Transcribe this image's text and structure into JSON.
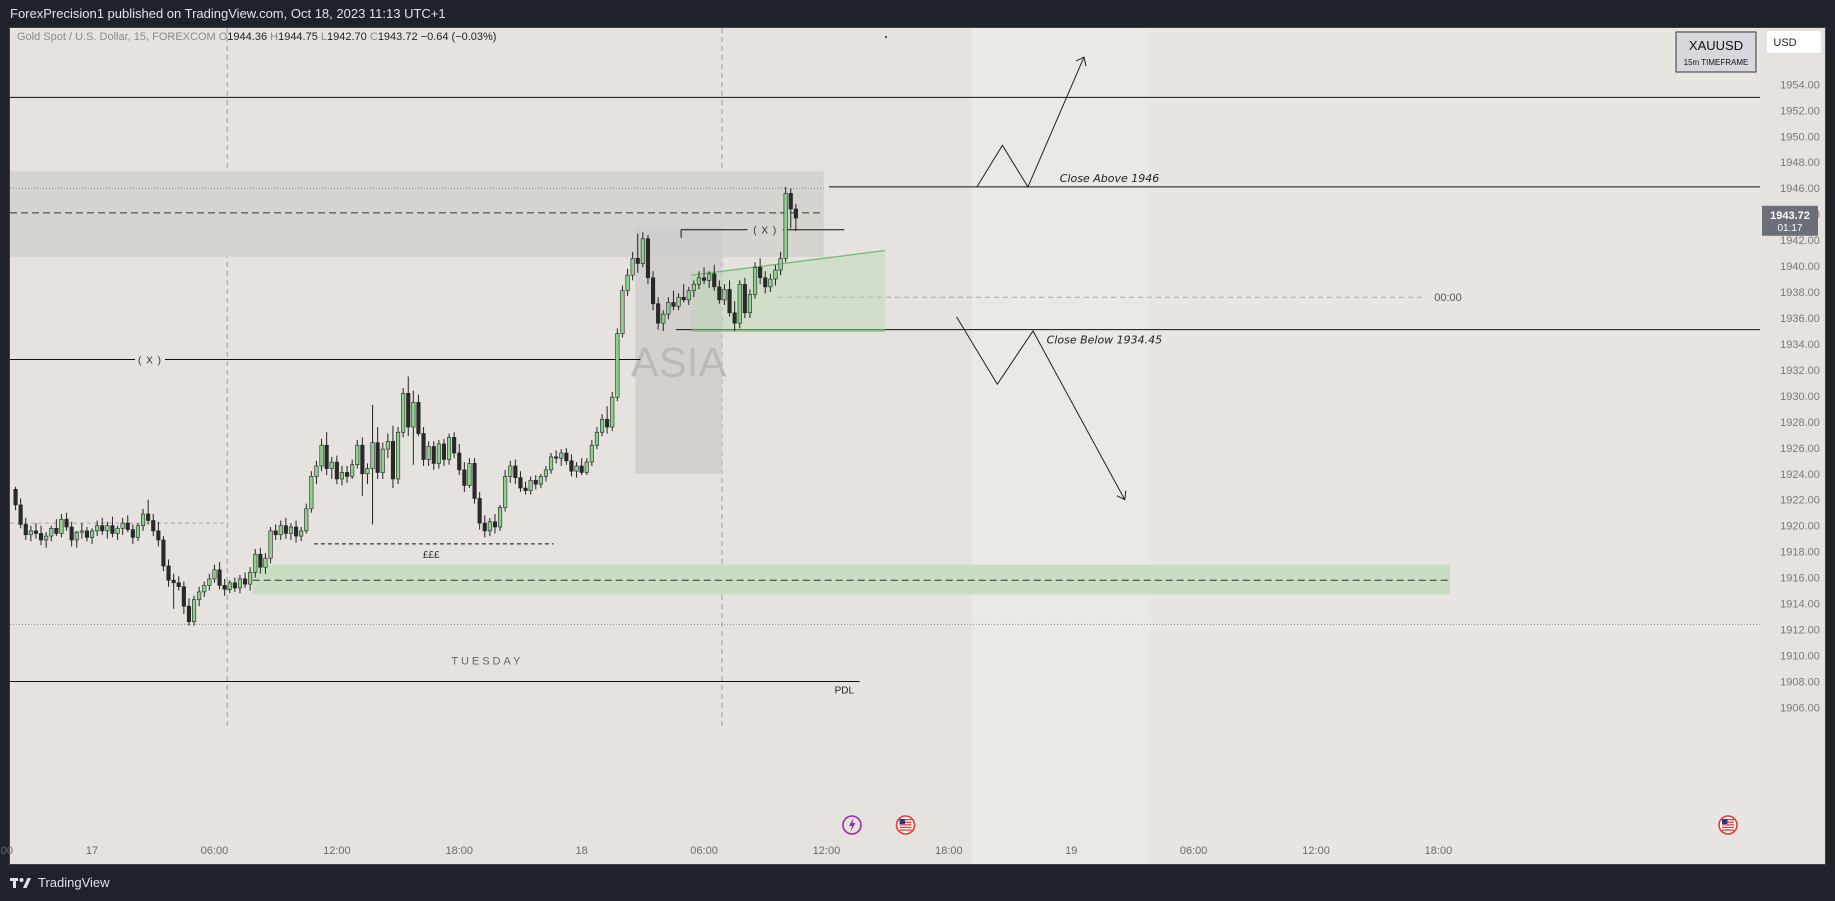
{
  "header": {
    "published_text": "ForexPrecision1 published on TradingView.com, Oct 18, 2023 11:13 UTC+1"
  },
  "footer": {
    "brand": "TradingView"
  },
  "chart_data": {
    "type": "candlestick",
    "symbol_line": {
      "name": "Gold Spot / U.S. Dollar, 15, FOREXCOM",
      "O": "1944.36",
      "H": "1944.75",
      "L": "1942.70",
      "C": "1943.72",
      "change": "−0.64 (−0.03%)"
    },
    "currency": "USD",
    "symbol_box": {
      "title": "XAUUSD",
      "subtitle": "15m TIMEFRAME"
    },
    "price_tag": {
      "price": "1943.72",
      "countdown": "01:17"
    },
    "y_ticks": [
      1906,
      1908,
      1910,
      1912,
      1914,
      1916,
      1918,
      1920,
      1922,
      1924,
      1926,
      1928,
      1930,
      1932,
      1934,
      1936,
      1938,
      1940,
      1942,
      1944,
      1946,
      1948,
      1950,
      1952,
      1954
    ],
    "y_range": [
      1904.8,
      1956.8
    ],
    "x_ticks": [
      {
        "label": ":00",
        "bar": -1.5
      },
      {
        "label": "17",
        "bar": 15.5
      },
      {
        "label": "06:00",
        "bar": 39.5
      },
      {
        "label": "12:00",
        "bar": 63.5
      },
      {
        "label": "18:00",
        "bar": 87.5
      },
      {
        "label": "18",
        "bar": 111.5
      },
      {
        "label": "06:00",
        "bar": 135.5
      },
      {
        "label": "12:00",
        "bar": 159.5
      },
      {
        "label": "18:00",
        "bar": 183.5
      },
      {
        "label": "19",
        "bar": 207.5
      },
      {
        "label": "06:00",
        "bar": 231.5
      },
      {
        "label": "12:00",
        "bar": 255.5
      },
      {
        "label": "18:00",
        "bar": 279.5
      }
    ],
    "colors": {
      "up": "#8fd08f",
      "down": "#2a2a2a",
      "background": "#e6e3de"
    },
    "annotations": {
      "x_label_1": "( X )",
      "x_label_2": "( X )",
      "asia": "ASIA",
      "tuesday": "TUESDAY",
      "eee": "£££",
      "pdl": "PDL",
      "close_above": "Close Above 1946",
      "close_below": "Close Below 1934.45",
      "time_label": "00:00"
    },
    "levels": {
      "top_line": 1953.0,
      "close_above": 1946.1,
      "dotted_top": 1946.0,
      "zone_dashed": 1944.1,
      "zone_top": 1947.3,
      "zone_bottom": 1940.7,
      "close_below": 1935.1,
      "x_level_left": 1932.8,
      "x_level_right": 1942.8,
      "range_mid": 1937.6,
      "eee_line": 1918.6,
      "demand_top": 1917.0,
      "demand_bottom": 1914.7,
      "demand_mid": 1915.8,
      "dotted_low": 1912.4,
      "pdl": 1908.0
    },
    "candles": [
      [
        1922.8,
        1923.0,
        1921.2,
        1921.6
      ],
      [
        1921.6,
        1922.1,
        1919.8,
        1920.1
      ],
      [
        1920.1,
        1920.6,
        1918.9,
        1919.3
      ],
      [
        1919.3,
        1920.0,
        1918.8,
        1919.6
      ],
      [
        1919.6,
        1920.2,
        1919.0,
        1919.4
      ],
      [
        1919.4,
        1920.0,
        1918.5,
        1918.9
      ],
      [
        1918.9,
        1919.5,
        1918.3,
        1919.2
      ],
      [
        1919.2,
        1920.0,
        1918.8,
        1919.8
      ],
      [
        1919.8,
        1920.5,
        1919.2,
        1919.4
      ],
      [
        1919.4,
        1920.9,
        1919.1,
        1920.5
      ],
      [
        1920.5,
        1921.0,
        1919.6,
        1919.9
      ],
      [
        1919.9,
        1920.3,
        1918.4,
        1918.9
      ],
      [
        1918.9,
        1919.6,
        1918.3,
        1919.5
      ],
      [
        1919.5,
        1920.2,
        1919.0,
        1919.6
      ],
      [
        1919.6,
        1919.9,
        1918.8,
        1919.1
      ],
      [
        1919.1,
        1919.8,
        1918.6,
        1919.6
      ],
      [
        1919.6,
        1920.4,
        1919.2,
        1920.0
      ],
      [
        1920.0,
        1920.6,
        1919.3,
        1919.6
      ],
      [
        1919.6,
        1920.3,
        1919.0,
        1920.0
      ],
      [
        1920.0,
        1920.7,
        1919.1,
        1919.4
      ],
      [
        1919.4,
        1920.0,
        1918.9,
        1919.8
      ],
      [
        1919.8,
        1920.6,
        1919.3,
        1920.2
      ],
      [
        1920.2,
        1920.8,
        1919.5,
        1919.7
      ],
      [
        1919.7,
        1920.1,
        1918.6,
        1919.1
      ],
      [
        1919.1,
        1920.2,
        1918.8,
        1920.0
      ],
      [
        1920.0,
        1921.3,
        1919.6,
        1920.9
      ],
      [
        1920.9,
        1922.0,
        1920.1,
        1920.4
      ],
      [
        1920.4,
        1920.9,
        1919.2,
        1919.6
      ],
      [
        1919.6,
        1920.3,
        1918.4,
        1918.9
      ],
      [
        1918.9,
        1919.2,
        1916.5,
        1916.9
      ],
      [
        1916.9,
        1917.4,
        1915.3,
        1915.8
      ],
      [
        1915.8,
        1916.3,
        1913.6,
        1915.6
      ],
      [
        1915.6,
        1916.1,
        1915.0,
        1915.3
      ],
      [
        1915.3,
        1915.7,
        1913.2,
        1913.8
      ],
      [
        1913.8,
        1914.4,
        1912.3,
        1912.6
      ],
      [
        1912.6,
        1914.6,
        1912.3,
        1914.3
      ],
      [
        1914.3,
        1915.3,
        1913.8,
        1914.9
      ],
      [
        1914.9,
        1915.7,
        1914.5,
        1915.4
      ],
      [
        1915.4,
        1916.3,
        1915.0,
        1915.9
      ],
      [
        1915.9,
        1917.0,
        1915.6,
        1916.6
      ],
      [
        1916.6,
        1917.2,
        1915.1,
        1915.4
      ],
      [
        1915.4,
        1915.9,
        1914.6,
        1915.1
      ],
      [
        1915.1,
        1915.8,
        1914.8,
        1915.6
      ],
      [
        1915.6,
        1916.0,
        1914.9,
        1915.2
      ],
      [
        1915.2,
        1916.2,
        1914.8,
        1915.9
      ],
      [
        1915.9,
        1916.4,
        1915.2,
        1915.5
      ],
      [
        1915.5,
        1916.8,
        1915.0,
        1916.4
      ],
      [
        1916.4,
        1918.2,
        1916.0,
        1917.8
      ],
      [
        1917.8,
        1918.3,
        1916.3,
        1916.8
      ],
      [
        1916.8,
        1917.9,
        1916.3,
        1917.5
      ],
      [
        1917.5,
        1919.9,
        1917.1,
        1919.6
      ],
      [
        1919.6,
        1920.1,
        1918.9,
        1919.3
      ],
      [
        1919.3,
        1920.4,
        1918.9,
        1920.0
      ],
      [
        1920.0,
        1920.6,
        1919.0,
        1919.4
      ],
      [
        1919.4,
        1920.2,
        1918.9,
        1919.9
      ],
      [
        1919.9,
        1920.4,
        1918.7,
        1919.2
      ],
      [
        1919.2,
        1919.9,
        1918.8,
        1919.6
      ],
      [
        1919.6,
        1921.7,
        1919.4,
        1921.3
      ],
      [
        1921.3,
        1924.2,
        1921.0,
        1923.8
      ],
      [
        1923.8,
        1925.0,
        1923.2,
        1924.6
      ],
      [
        1924.6,
        1926.7,
        1924.2,
        1926.2
      ],
      [
        1926.2,
        1927.2,
        1923.9,
        1924.4
      ],
      [
        1924.4,
        1925.3,
        1923.6,
        1924.9
      ],
      [
        1924.9,
        1925.4,
        1923.2,
        1923.6
      ],
      [
        1923.6,
        1924.6,
        1923.1,
        1924.1
      ],
      [
        1924.1,
        1924.6,
        1923.3,
        1923.8
      ],
      [
        1923.8,
        1925.1,
        1923.6,
        1924.7
      ],
      [
        1924.7,
        1926.6,
        1924.4,
        1926.2
      ],
      [
        1926.2,
        1926.8,
        1922.3,
        1924.0
      ],
      [
        1924.0,
        1924.8,
        1923.2,
        1924.4
      ],
      [
        1924.4,
        1929.3,
        1920.1,
        1926.4
      ],
      [
        1926.4,
        1927.6,
        1923.6,
        1924.1
      ],
      [
        1924.1,
        1926.4,
        1923.6,
        1925.9
      ],
      [
        1925.9,
        1927.1,
        1925.2,
        1926.5
      ],
      [
        1926.5,
        1927.7,
        1922.9,
        1923.6
      ],
      [
        1923.6,
        1927.6,
        1923.2,
        1927.2
      ],
      [
        1927.2,
        1930.6,
        1926.8,
        1930.2
      ],
      [
        1930.2,
        1931.5,
        1926.9,
        1927.6
      ],
      [
        1927.6,
        1930.4,
        1924.7,
        1929.5
      ],
      [
        1929.5,
        1930.1,
        1926.9,
        1927.1
      ],
      [
        1927.1,
        1927.6,
        1924.6,
        1925.1
      ],
      [
        1925.1,
        1926.5,
        1924.6,
        1926.1
      ],
      [
        1926.1,
        1926.5,
        1924.3,
        1924.8
      ],
      [
        1924.8,
        1926.6,
        1924.4,
        1926.3
      ],
      [
        1926.3,
        1926.7,
        1924.6,
        1925.1
      ],
      [
        1925.1,
        1927.1,
        1924.7,
        1926.8
      ],
      [
        1926.8,
        1927.2,
        1925.2,
        1925.6
      ],
      [
        1925.6,
        1926.3,
        1923.9,
        1924.3
      ],
      [
        1924.3,
        1924.9,
        1922.6,
        1923.1
      ],
      [
        1923.1,
        1925.2,
        1922.9,
        1924.8
      ],
      [
        1924.8,
        1925.2,
        1921.7,
        1922.1
      ],
      [
        1922.1,
        1922.6,
        1919.7,
        1920.2
      ],
      [
        1920.2,
        1920.8,
        1919.1,
        1919.6
      ],
      [
        1919.6,
        1920.6,
        1919.2,
        1920.3
      ],
      [
        1920.3,
        1920.9,
        1919.4,
        1919.9
      ],
      [
        1919.9,
        1921.6,
        1919.6,
        1921.4
      ],
      [
        1921.4,
        1924.3,
        1921.1,
        1923.8
      ],
      [
        1923.8,
        1925.0,
        1923.3,
        1924.6
      ],
      [
        1924.6,
        1925.1,
        1923.2,
        1923.7
      ],
      [
        1923.7,
        1924.2,
        1922.6,
        1922.9
      ],
      [
        1922.9,
        1923.4,
        1922.4,
        1922.7
      ],
      [
        1922.7,
        1923.8,
        1922.4,
        1923.5
      ],
      [
        1923.5,
        1923.9,
        1922.8,
        1923.2
      ],
      [
        1923.2,
        1924.0,
        1922.9,
        1923.8
      ],
      [
        1923.8,
        1924.6,
        1923.4,
        1924.3
      ],
      [
        1924.3,
        1925.6,
        1924.0,
        1925.3
      ],
      [
        1925.3,
        1925.8,
        1924.8,
        1925.2
      ],
      [
        1925.2,
        1925.9,
        1924.6,
        1925.6
      ],
      [
        1925.6,
        1926.0,
        1924.7,
        1925.0
      ],
      [
        1925.0,
        1925.5,
        1923.8,
        1924.2
      ],
      [
        1924.2,
        1924.9,
        1923.7,
        1924.6
      ],
      [
        1924.6,
        1925.2,
        1923.9,
        1924.1
      ],
      [
        1924.1,
        1925.2,
        1923.9,
        1924.9
      ],
      [
        1924.9,
        1926.6,
        1924.6,
        1926.2
      ],
      [
        1926.2,
        1927.6,
        1925.9,
        1927.2
      ],
      [
        1927.2,
        1928.6,
        1926.9,
        1928.2
      ],
      [
        1928.2,
        1929.2,
        1927.1,
        1927.6
      ],
      [
        1927.6,
        1930.3,
        1927.3,
        1929.9
      ],
      [
        1929.9,
        1935.2,
        1929.6,
        1934.8
      ],
      [
        1934.8,
        1938.5,
        1934.5,
        1938.1
      ],
      [
        1938.1,
        1939.8,
        1937.7,
        1939.3
      ],
      [
        1939.3,
        1941.1,
        1938.9,
        1940.6
      ],
      [
        1940.6,
        1942.5,
        1939.5,
        1940.2
      ],
      [
        1940.2,
        1942.6,
        1939.9,
        1942.1
      ],
      [
        1942.1,
        1942.4,
        1938.6,
        1939.1
      ],
      [
        1939.1,
        1939.6,
        1936.6,
        1937.1
      ],
      [
        1937.1,
        1937.6,
        1935.1,
        1935.6
      ],
      [
        1935.6,
        1936.6,
        1935.0,
        1936.3
      ],
      [
        1936.3,
        1937.6,
        1935.9,
        1937.2
      ],
      [
        1937.2,
        1938.1,
        1936.6,
        1936.9
      ],
      [
        1936.9,
        1937.9,
        1936.6,
        1937.6
      ],
      [
        1937.6,
        1938.6,
        1937.2,
        1937.4
      ],
      [
        1937.4,
        1938.4,
        1937.0,
        1938.1
      ],
      [
        1938.1,
        1938.9,
        1937.6,
        1938.6
      ],
      [
        1938.6,
        1939.6,
        1938.2,
        1939.1
      ],
      [
        1939.1,
        1939.9,
        1938.6,
        1938.9
      ],
      [
        1938.9,
        1939.6,
        1938.3,
        1939.4
      ],
      [
        1939.4,
        1940.1,
        1938.1,
        1938.4
      ],
      [
        1938.4,
        1938.9,
        1937.1,
        1937.4
      ],
      [
        1937.4,
        1938.6,
        1937.0,
        1938.2
      ],
      [
        1938.2,
        1938.9,
        1936.1,
        1936.4
      ],
      [
        1936.4,
        1937.3,
        1935.0,
        1935.6
      ],
      [
        1935.6,
        1938.9,
        1935.2,
        1938.6
      ],
      [
        1938.6,
        1939.1,
        1936.0,
        1936.4
      ],
      [
        1936.4,
        1938.2,
        1936.0,
        1937.8
      ],
      [
        1937.8,
        1940.3,
        1937.5,
        1939.9
      ],
      [
        1939.9,
        1940.6,
        1938.6,
        1939.1
      ],
      [
        1939.1,
        1939.6,
        1937.9,
        1938.4
      ],
      [
        1938.4,
        1939.4,
        1938.0,
        1939.0
      ],
      [
        1939.0,
        1940.1,
        1938.5,
        1939.7
      ],
      [
        1939.7,
        1941.1,
        1939.3,
        1940.6
      ],
      [
        1940.6,
        1946.1,
        1940.3,
        1945.6
      ],
      [
        1945.6,
        1946.0,
        1942.9,
        1944.4
      ],
      [
        1944.4,
        1944.8,
        1942.7,
        1943.7
      ]
    ]
  }
}
